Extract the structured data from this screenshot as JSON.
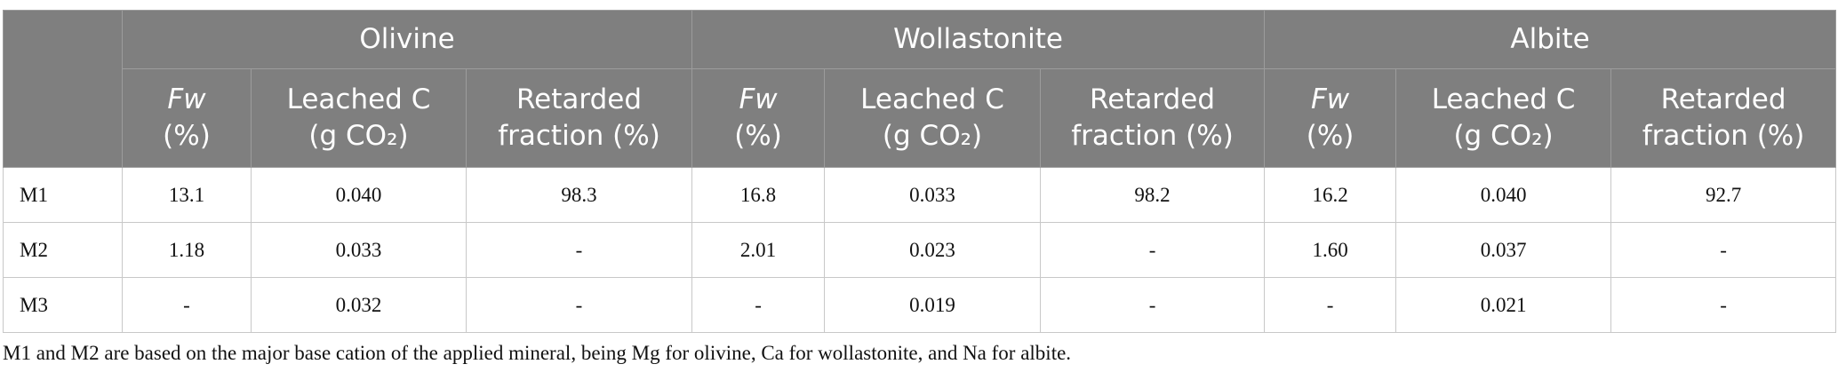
{
  "table": {
    "groups": [
      {
        "name": "Olivine",
        "columns": [
          [
            "Fw",
            "(%)"
          ],
          [
            "Leached C",
            "(g CO₂)"
          ],
          [
            "Retarded",
            "fraction (%)"
          ]
        ]
      },
      {
        "name": "Wollastonite",
        "columns": [
          [
            "Fw",
            "(%)"
          ],
          [
            "Leached C",
            "(g CO₂)"
          ],
          [
            "Retarded",
            "fraction (%)"
          ]
        ]
      },
      {
        "name": "Albite",
        "columns": [
          [
            "Fw",
            "(%)"
          ],
          [
            "Leached C",
            "(g CO₂)"
          ],
          [
            "Retarded",
            "fraction (%)"
          ]
        ]
      }
    ],
    "rows": [
      [
        "M1",
        "13.1",
        "0.040",
        "98.3",
        "16.8",
        "0.033",
        "98.2",
        "16.2",
        "0.040",
        "92.7"
      ],
      [
        "M2",
        "1.18",
        "0.033",
        "-",
        "2.01",
        "0.023",
        "-",
        "1.60",
        "0.037",
        "-"
      ],
      [
        "M3",
        "-",
        "0.032",
        "-",
        "-",
        "0.019",
        "-",
        "-",
        "0.021",
        "-"
      ]
    ],
    "footnote": "M1 and M2 are based on the major base cation of the applied mineral, being Mg for olivine, Ca for wollastonite, and Na for albite."
  }
}
